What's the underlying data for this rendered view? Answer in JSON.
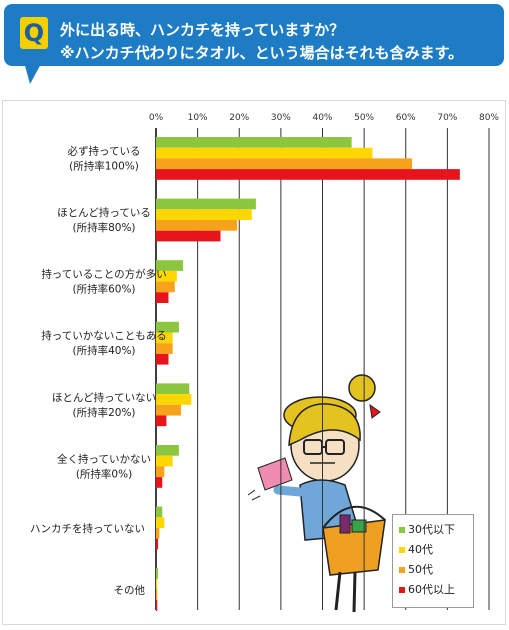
{
  "header": {
    "badge": "Q",
    "question_line1": "外に出る時、ハンカチを持っていますか？",
    "question_line2": "※ハンカチ代わりにタオル、という場合はそれも含みます。"
  },
  "chart_data": {
    "type": "bar",
    "orientation": "horizontal",
    "title": "",
    "xlim": [
      0,
      80
    ],
    "x_ticks": [
      "0%",
      "10%",
      "20%",
      "30%",
      "40%",
      "50%",
      "60%",
      "70%",
      "80%"
    ],
    "grid": true,
    "legend_position": "bottom-right",
    "categories": [
      {
        "label": "必ず持っている",
        "sublabel": "(所持率100%)"
      },
      {
        "label": "ほとんど持っている",
        "sublabel": "(所持率80%)"
      },
      {
        "label": "持っていることの方が多い",
        "sublabel": "(所持率60%)"
      },
      {
        "label": "持っていかないこともある",
        "sublabel": "(所持率40%)"
      },
      {
        "label": "ほとんど持っていない",
        "sublabel": "(所持率20%)"
      },
      {
        "label": "全く持っていかない",
        "sublabel": "(所持率0%)"
      },
      {
        "label": "ハンカチを持っていない",
        "sublabel": ""
      },
      {
        "label": "その他",
        "sublabel": ""
      }
    ],
    "series": [
      {
        "name": "30代以下",
        "color": "#8cc63f",
        "values": [
          47,
          24,
          6.5,
          5.5,
          8,
          5.5,
          1.5,
          0.5
        ]
      },
      {
        "name": "40代",
        "color": "#ffd700",
        "values": [
          52,
          23,
          5,
          4,
          8.5,
          4,
          2,
          0.3
        ]
      },
      {
        "name": "50代",
        "color": "#f7a21b",
        "values": [
          61.5,
          19.5,
          4.5,
          4,
          6,
          2,
          0.8,
          0.3
        ]
      },
      {
        "name": "60代以上",
        "color": "#e8141c",
        "values": [
          73,
          15.5,
          3,
          3,
          2.5,
          1.5,
          0.5,
          0.3
        ]
      }
    ]
  }
}
